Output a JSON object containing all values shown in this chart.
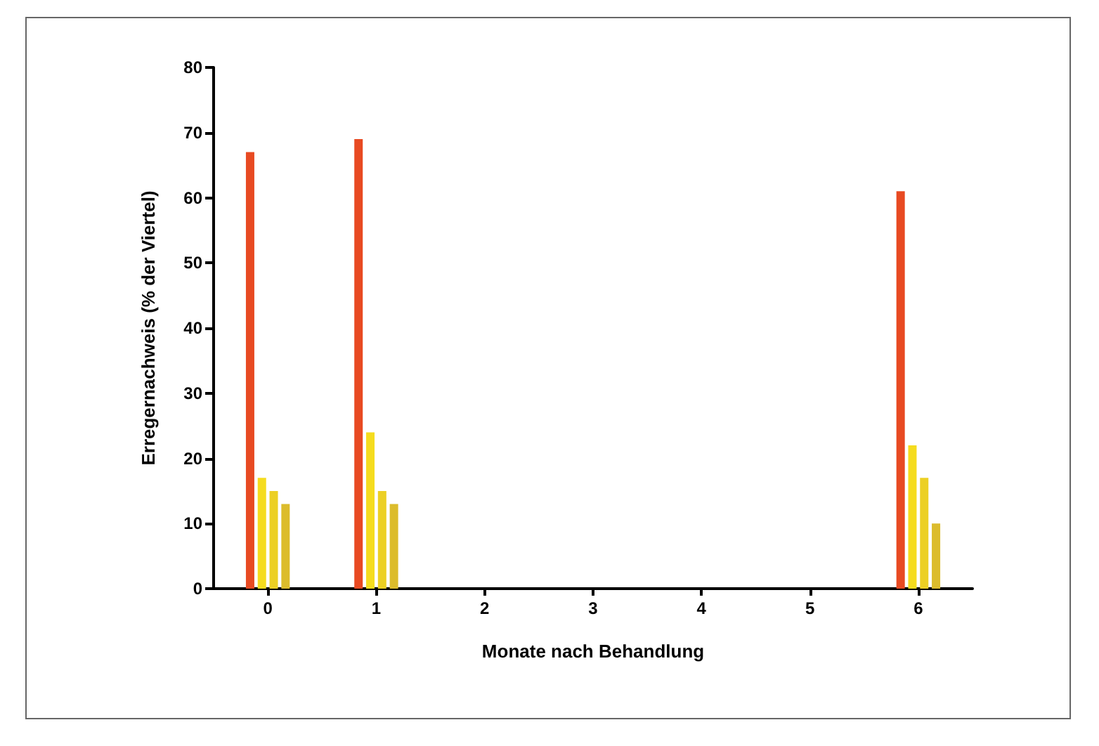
{
  "chart_data": {
    "type": "bar",
    "xlabel": "Monate nach Behandlung",
    "ylabel": "Erregernachweis (% der Viertel)",
    "categories": [
      "0",
      "1",
      "2",
      "3",
      "4",
      "5",
      "6"
    ],
    "series": [
      {
        "color": "#e84a22",
        "values": [
          67,
          69,
          null,
          null,
          null,
          null,
          61
        ]
      },
      {
        "color": "#f5dc1e",
        "values": [
          17,
          24,
          null,
          null,
          null,
          null,
          22
        ]
      },
      {
        "color": "#ecd024",
        "values": [
          15,
          15,
          null,
          null,
          null,
          null,
          17
        ]
      },
      {
        "color": "#dcbc2c",
        "values": [
          13,
          13,
          null,
          null,
          null,
          null,
          10
        ]
      }
    ],
    "ylim": [
      0,
      80
    ],
    "yticks": [
      0,
      10,
      20,
      30,
      40,
      50,
      60,
      70,
      80
    ],
    "grid": false
  }
}
